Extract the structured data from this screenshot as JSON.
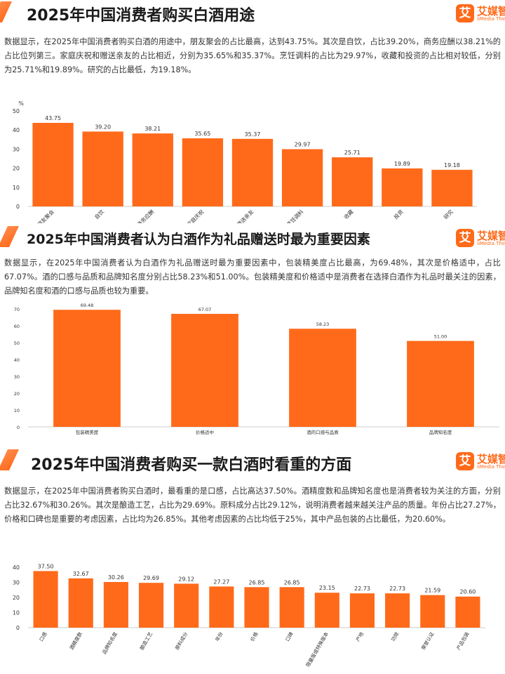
{
  "logo": {
    "mark": "艾",
    "name": "艾媒智库",
    "english": "iiMedia Think Tank"
  },
  "sections": [
    {
      "title": "2025年中国消费者购买白酒用途",
      "description": "数据显示，在2025年中国消费者购买白酒的用途中，朋友聚会的占比最高，达到43.75%。其次是自饮，占比39.20%，商务应酬以38.21%的占比位列第三。家庭庆祝和赠送亲友的占比相近，分别为35.65%和35.37%。烹饪调料的占比为29.97%，收藏和投资的占比相对较低，分别为25.71%和19.89%。研究的占比最低，为19.18%。"
    },
    {
      "title": "2025年中国消费者认为白酒作为礼品赠送时最为重要因素",
      "description": "数据显示，在2025年中国消费者认为白酒作为礼品赠送时最为重要因素中，包装精美度占比最高，为69.48%，其次是价格适中，占比67.07%。酒的口感与品质和品牌知名度分别占比58.23%和51.00%。包装精美度和价格适中是消费者在选择白酒作为礼品时最关注的因素，品牌知名度和酒的口感与品质也较为重要。"
    },
    {
      "title": "2025年中国消费者购买一款白酒时看重的方面",
      "description": "数据显示，在2025年中国消费者购买白酒时，最看重的是口感，占比高达37.50%。酒精度数和品牌知名度也是消费者较为关注的方面，分别占比32.67%和30.26%。其次是酿造工艺，占比为29.69%。原料成分占比29.12%，说明消费者越来越关注产品的质量。年份占比27.27%，价格和口碑也是重要的考虑因素，占比均为26.85%。其他考虑因素的占比均低于25%，其中产品包装的占比最低，为20.60%。"
    }
  ],
  "colors": {
    "bar": "#ff6a1a",
    "accent": "#ff7a30",
    "axis": "#cccccc",
    "text": "#333333"
  },
  "chart_data": [
    {
      "type": "bar",
      "ylabel": "%",
      "ylim": [
        0,
        50
      ],
      "yticks": [
        0,
        10,
        20,
        30,
        40,
        50
      ],
      "categories": [
        "朋友聚会",
        "自饮",
        "商务应酬",
        "家庭庆祝",
        "赠送亲友",
        "烹饪调料",
        "收藏",
        "投资",
        "研究"
      ],
      "values": [
        43.75,
        39.2,
        38.21,
        35.65,
        35.37,
        29.97,
        25.71,
        19.89,
        19.18
      ],
      "value_labels": [
        "43.75",
        "39.20",
        "38.21",
        "35.65",
        "35.37",
        "29.97",
        "25.71",
        "19.89",
        "19.18"
      ],
      "grid": false
    },
    {
      "type": "bar",
      "ylim": [
        0,
        70
      ],
      "yticks": [
        0,
        10,
        20,
        30,
        40,
        50,
        60,
        70
      ],
      "categories": [
        "包装精美度",
        "价格适中",
        "酒的口感与品质",
        "品牌知名度"
      ],
      "values": [
        69.48,
        67.07,
        58.23,
        51.0
      ],
      "value_labels": [
        "69.48",
        "67.07",
        "58.23",
        "51.00"
      ],
      "grid": false
    },
    {
      "type": "bar",
      "ylim": [
        0,
        40
      ],
      "yticks": [
        0,
        10,
        20,
        30,
        40
      ],
      "categories": [
        "口感",
        "酒精度数",
        "品牌知名度",
        "酿造工艺",
        "原料成分",
        "年份",
        "价格",
        "口碑",
        "限量版或特殊版本",
        "产地",
        "功效",
        "荣誉认证",
        "产品包装"
      ],
      "values": [
        37.5,
        32.67,
        30.26,
        29.69,
        29.12,
        27.27,
        26.85,
        26.85,
        23.15,
        22.73,
        22.73,
        21.59,
        20.6
      ],
      "value_labels": [
        "37.50",
        "32.67",
        "30.26",
        "29.69",
        "29.12",
        "27.27",
        "26.85",
        "26.85",
        "23.15",
        "22.73",
        "22.73",
        "21.59",
        "20.60"
      ],
      "grid": false
    }
  ]
}
